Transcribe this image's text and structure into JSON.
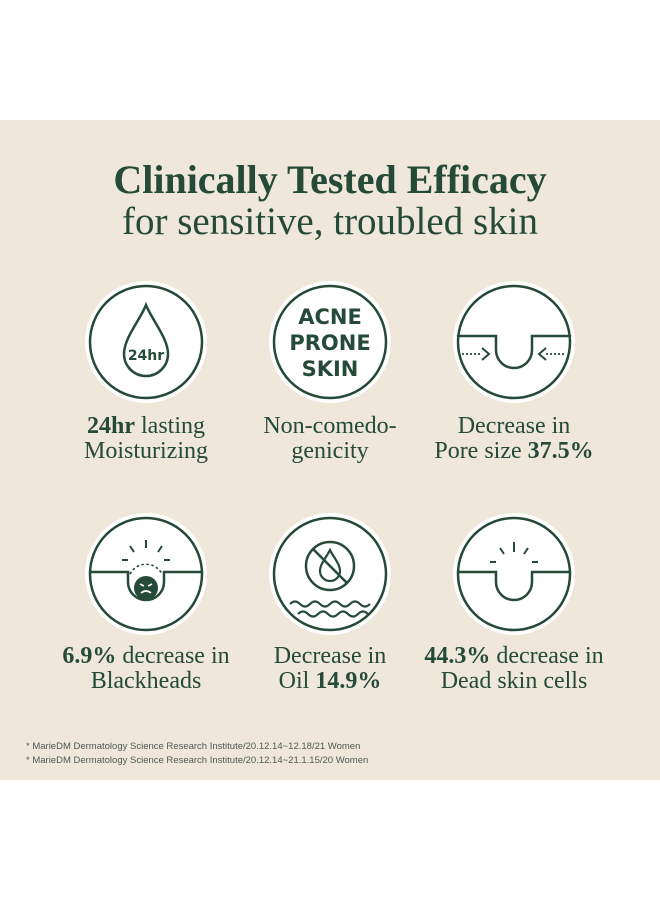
{
  "header": {
    "title": "Clinically Tested Efficacy",
    "subtitle": "for sensitive, troubled skin"
  },
  "colors": {
    "panel": "#efe7d9",
    "accent": "#254a38",
    "circle_fill": "#ffffff"
  },
  "features": [
    {
      "icon": "water-drop-icon",
      "icon_text": "24hr",
      "bold": "24hr",
      "rest": " lasting",
      "line2": "Moisturizing"
    },
    {
      "icon": "acne-prone-skin-badge-icon",
      "icon_lines": [
        "ACNE",
        "PRONE",
        "SKIN"
      ],
      "line1": "Non-comedo-",
      "line2": "genicity"
    },
    {
      "icon": "pore-shrink-icon",
      "line1": "Decrease in",
      "line2_plain": "Pore size ",
      "line2_bold": "37.5%"
    },
    {
      "icon": "blackhead-pore-icon",
      "line1_bold": "6.9%",
      "line1_plain": " decrease in",
      "line2": "Blackheads"
    },
    {
      "icon": "no-oil-icon",
      "line1": "Decrease in",
      "line2_plain": "Oil ",
      "line2_bold": "14.9%"
    },
    {
      "icon": "dead-skin-cells-icon",
      "line1_bold": "44.3%",
      "line1_plain": " decrease in",
      "line2": "Dead skin cells"
    }
  ],
  "footnotes": [
    "* MarieDM Dermatology Science Research Institute/20.12.14~12.18/21 Women",
    "* MarieDM Dermatology Science Research Institute/20.12.14~21.1.15/20 Women"
  ]
}
